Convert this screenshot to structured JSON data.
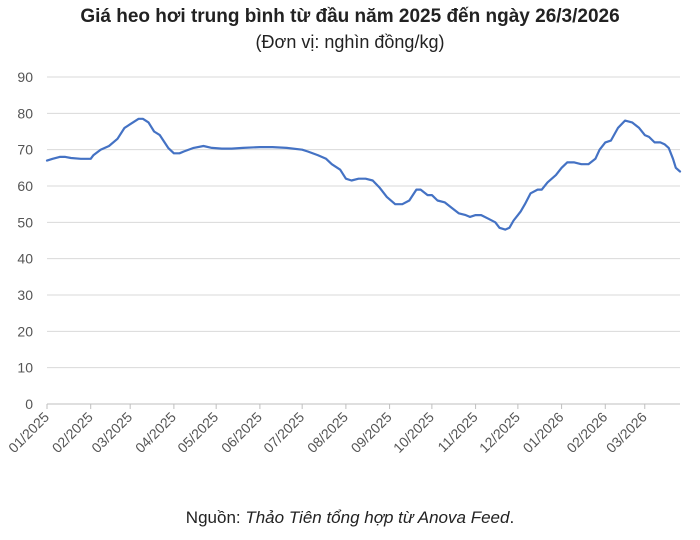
{
  "chart_data": {
    "type": "line",
    "title": "Giá heo hơi trung bình từ đầu năm 2025 đến ngày 26/3/2026",
    "subtitle": "(Đơn vị: nghìn đồng/kg)",
    "ylim": [
      0,
      90
    ],
    "yticks": [
      0,
      10,
      20,
      30,
      40,
      50,
      60,
      70,
      80,
      90
    ],
    "xlim": [
      "2025-01-01",
      "2026-03-26"
    ],
    "xticks": [
      {
        "date": "2025-01-01",
        "label": "01/2025"
      },
      {
        "date": "2025-02-01",
        "label": "02/2025"
      },
      {
        "date": "2025-03-01",
        "label": "03/2025"
      },
      {
        "date": "2025-04-01",
        "label": "04/2025"
      },
      {
        "date": "2025-05-01",
        "label": "05/2025"
      },
      {
        "date": "2025-06-01",
        "label": "06/2025"
      },
      {
        "date": "2025-07-01",
        "label": "07/2025"
      },
      {
        "date": "2025-08-01",
        "label": "08/2025"
      },
      {
        "date": "2025-09-01",
        "label": "09/2025"
      },
      {
        "date": "2025-10-01",
        "label": "10/2025"
      },
      {
        "date": "2025-11-01",
        "label": "11/2025"
      },
      {
        "date": "2025-12-01",
        "label": "12/2025"
      },
      {
        "date": "2026-01-01",
        "label": "01/2026"
      },
      {
        "date": "2026-02-01",
        "label": "02/2026"
      },
      {
        "date": "2026-03-01",
        "label": "03/2026"
      }
    ],
    "grid": "horizontal",
    "color": "#4472C4",
    "series": [
      {
        "x": [
          "2025-01-01",
          "2025-01-05",
          "2025-01-10",
          "2025-01-14",
          "2025-01-18",
          "2025-01-25",
          "2025-02-01",
          "2025-02-03",
          "2025-02-08",
          "2025-02-14",
          "2025-02-20",
          "2025-02-25",
          "2025-03-01",
          "2025-03-07",
          "2025-03-10",
          "2025-03-14",
          "2025-03-18",
          "2025-03-22",
          "2025-03-28",
          "2025-04-01",
          "2025-04-05",
          "2025-04-08",
          "2025-04-15",
          "2025-04-22",
          "2025-04-28",
          "2025-05-05",
          "2025-05-12",
          "2025-05-20",
          "2025-06-01",
          "2025-06-10",
          "2025-06-20",
          "2025-07-01",
          "2025-07-05",
          "2025-07-12",
          "2025-07-18",
          "2025-07-22",
          "2025-07-28",
          "2025-08-01",
          "2025-08-05",
          "2025-08-10",
          "2025-08-15",
          "2025-08-20",
          "2025-08-25",
          "2025-08-30",
          "2025-09-05",
          "2025-09-10",
          "2025-09-15",
          "2025-09-20",
          "2025-09-23",
          "2025-09-28",
          "2025-10-01",
          "2025-10-05",
          "2025-10-10",
          "2025-10-15",
          "2025-10-20",
          "2025-10-25",
          "2025-10-28",
          "2025-11-01",
          "2025-11-05",
          "2025-11-10",
          "2025-11-15",
          "2025-11-18",
          "2025-11-22",
          "2025-11-25",
          "2025-11-28",
          "2025-12-01",
          "2025-12-03",
          "2025-12-06",
          "2025-12-10",
          "2025-12-15",
          "2025-12-18",
          "2025-12-22",
          "2025-12-28",
          "2026-01-01",
          "2026-01-05",
          "2026-01-10",
          "2026-01-15",
          "2026-01-20",
          "2026-01-25",
          "2026-01-28",
          "2026-02-01",
          "2026-02-05",
          "2026-02-10",
          "2026-02-15",
          "2026-02-20",
          "2026-02-25",
          "2026-03-01",
          "2026-03-04",
          "2026-03-08",
          "2026-03-12",
          "2026-03-15",
          "2026-03-18",
          "2026-03-21",
          "2026-03-23",
          "2026-03-26"
        ],
        "y": [
          67,
          67.5,
          68,
          68,
          67.7,
          67.5,
          67.5,
          68.5,
          70,
          71,
          73,
          76,
          77,
          78.5,
          78.5,
          77.5,
          75,
          74,
          70.5,
          69,
          69,
          69.5,
          70.5,
          71,
          70.5,
          70.3,
          70.3,
          70.5,
          70.7,
          70.7,
          70.5,
          70,
          69.5,
          68.5,
          67.5,
          66,
          64.5,
          62,
          61.5,
          62,
          62,
          61.5,
          59.5,
          57,
          55,
          55,
          56,
          59,
          59,
          57.5,
          57.5,
          56,
          55.5,
          54,
          52.5,
          52,
          51.5,
          52,
          52,
          51,
          50,
          48.5,
          48,
          48.5,
          50.5,
          52,
          53,
          55,
          58,
          59,
          59,
          61,
          63,
          65,
          66.5,
          66.5,
          66,
          66,
          67.5,
          70,
          72,
          72.5,
          76,
          78,
          77.5,
          76,
          74,
          73.5,
          72,
          72,
          71.5,
          70.5,
          67.5,
          65,
          64
        ]
      }
    ]
  },
  "source": {
    "prefix": "Nguồn: ",
    "credit": "Thảo Tiên tổng hợp từ Anova Feed",
    "suffix": "."
  }
}
